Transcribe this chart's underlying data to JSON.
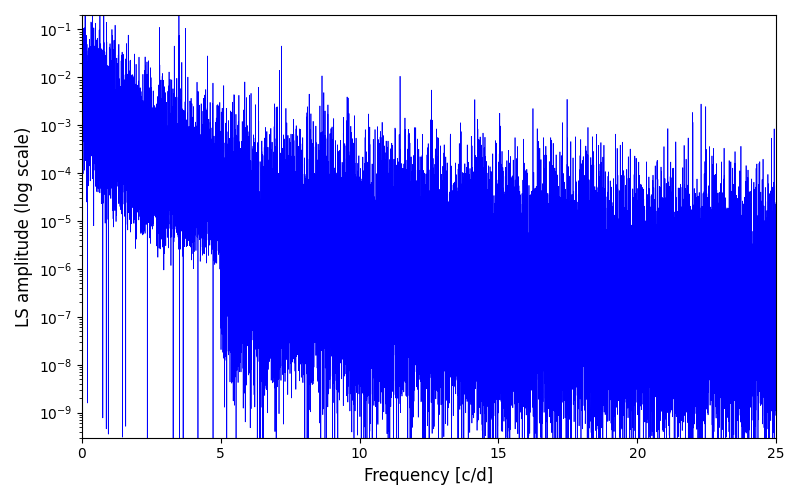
{
  "title": "",
  "xlabel": "Frequency [c/d]",
  "ylabel": "LS amplitude (log scale)",
  "xlim": [
    0,
    25
  ],
  "ylim": [
    3e-10,
    0.2
  ],
  "line_color": "#0000ff",
  "line_width": 0.5,
  "background_color": "#ffffff",
  "figsize": [
    8.0,
    5.0
  ],
  "dpi": 100,
  "seed": 42,
  "freq_max": 25.0,
  "n_points": 20000,
  "envelope_scale": 0.005,
  "envelope_power": 2.2,
  "base_noise_scale": 2.0,
  "spike_period": 1.0,
  "num_harmonics": 50,
  "harmonic_decay": 0.7
}
